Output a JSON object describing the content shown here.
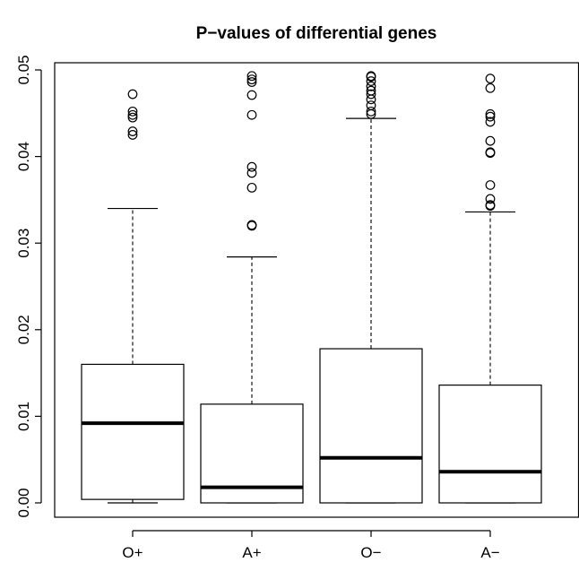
{
  "chart_data": {
    "type": "boxplot",
    "title": "P−values of differential genes",
    "xlabel": "",
    "ylabel": "",
    "ylim": [
      0,
      0.05
    ],
    "y_ticks": [
      0.0,
      0.01,
      0.02,
      0.03,
      0.04,
      0.05
    ],
    "y_tick_labels": [
      "0.00",
      "0.01",
      "0.02",
      "0.03",
      "0.04",
      "0.05"
    ],
    "categories": [
      "O+",
      "A+",
      "O−",
      "A−"
    ],
    "boxes": [
      {
        "name": "O+",
        "whisker_low": 0.0,
        "q1": 0.0004,
        "median": 0.0092,
        "q3": 0.016,
        "whisker_high": 0.034,
        "outliers": [
          0.0425,
          0.0429,
          0.0445,
          0.0448,
          0.0452,
          0.0472
        ]
      },
      {
        "name": "A+",
        "whisker_low": 0.0,
        "q1": 0.0,
        "median": 0.0018,
        "q3": 0.0114,
        "whisker_high": 0.0284,
        "outliers": [
          0.032,
          0.0321,
          0.0364,
          0.0381,
          0.0388,
          0.0448,
          0.0471,
          0.0486,
          0.0489,
          0.0493
        ]
      },
      {
        "name": "O−",
        "whisker_low": 0.0,
        "q1": 0.0,
        "median": 0.0052,
        "q3": 0.0178,
        "whisker_high": 0.0444,
        "outliers": [
          0.0449,
          0.0452,
          0.0459,
          0.0466,
          0.0472,
          0.0476,
          0.0481,
          0.0487,
          0.0492,
          0.0493
        ]
      },
      {
        "name": "A−",
        "whisker_low": 0.0,
        "q1": 0.0,
        "median": 0.0036,
        "q3": 0.0136,
        "whisker_high": 0.0336,
        "outliers": [
          0.0343,
          0.0344,
          0.0351,
          0.0367,
          0.0404,
          0.0405,
          0.0418,
          0.044,
          0.0446,
          0.0449,
          0.0479,
          0.049
        ]
      }
    ],
    "grid": false,
    "legend": "none",
    "colors": {
      "box_stroke": "#000000",
      "box_fill": "#ffffff",
      "median": "#000000",
      "outlier_stroke": "#000000"
    }
  }
}
